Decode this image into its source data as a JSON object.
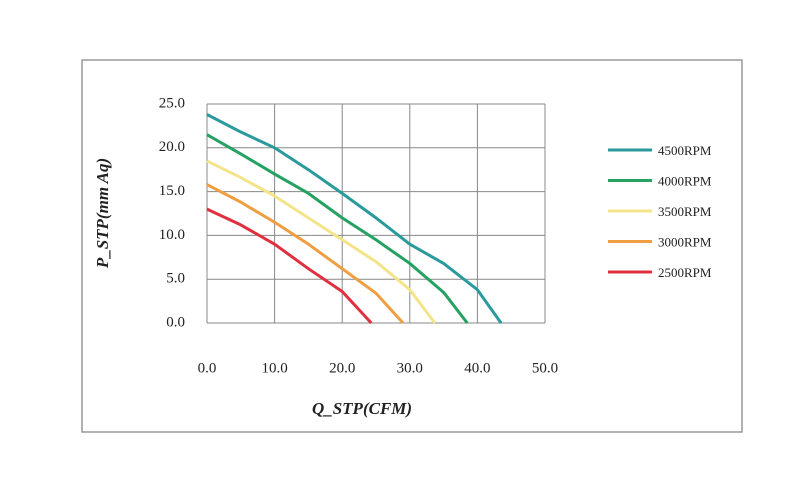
{
  "chart_data": {
    "type": "line",
    "xlabel": "Q_STP(CFM)",
    "ylabel": "P_STP(mm Aq)",
    "xlim": [
      0,
      50
    ],
    "ylim": [
      0,
      25
    ],
    "xticks": [
      {
        "value": 0,
        "label": "0.0"
      },
      {
        "value": 10,
        "label": "10.0"
      },
      {
        "value": 20,
        "label": "20.0"
      },
      {
        "value": 30,
        "label": "30.0"
      },
      {
        "value": 40,
        "label": "40.0"
      },
      {
        "value": 50,
        "label": "50.0"
      }
    ],
    "yticks": [
      {
        "value": 0,
        "label": "0.0"
      },
      {
        "value": 5,
        "label": "5.0"
      },
      {
        "value": 10,
        "label": "10.0"
      },
      {
        "value": 15,
        "label": "15.0"
      },
      {
        "value": 20,
        "label": "20.0"
      },
      {
        "value": 25,
        "label": "25.0"
      }
    ],
    "grid": true,
    "series": [
      {
        "name": "4500RPM",
        "color": "#2a9a9c",
        "x": [
          0,
          5,
          10,
          15,
          20,
          25,
          30,
          35,
          40,
          43.5
        ],
        "values": [
          23.8,
          21.8,
          20.0,
          17.5,
          14.8,
          12.0,
          9.0,
          6.8,
          3.8,
          0
        ]
      },
      {
        "name": "4000RPM",
        "color": "#25a262",
        "x": [
          0,
          5,
          10,
          15,
          20,
          25,
          30,
          35,
          38.5
        ],
        "values": [
          21.5,
          19.3,
          17.0,
          14.8,
          12.0,
          9.5,
          6.8,
          3.5,
          0
        ]
      },
      {
        "name": "3500RPM",
        "color": "#f3e48a",
        "x": [
          0,
          5,
          10,
          15,
          20,
          25,
          30,
          33.7
        ],
        "values": [
          18.5,
          16.6,
          14.5,
          12.0,
          9.5,
          7.0,
          3.8,
          0
        ]
      },
      {
        "name": "3000RPM",
        "color": "#ef9f42",
        "x": [
          0,
          5,
          10,
          15,
          20,
          25,
          29
        ],
        "values": [
          15.8,
          13.8,
          11.5,
          9.0,
          6.2,
          3.4,
          0
        ]
      },
      {
        "name": "2500RPM",
        "color": "#e0303f",
        "x": [
          0,
          5,
          10,
          15,
          20,
          24.3
        ],
        "values": [
          13.0,
          11.2,
          9.0,
          6.2,
          3.6,
          0
        ]
      }
    ]
  }
}
